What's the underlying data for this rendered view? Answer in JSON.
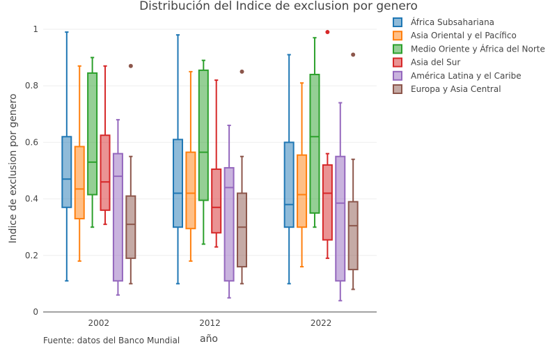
{
  "chart_data": {
    "type": "box",
    "title": "Distribución del Indice de exclusion por genero",
    "xlabel": "año",
    "ylabel": "Indice de exclusion por genero",
    "source_note": "Fuente: datos del Banco Mundial",
    "categories": [
      "2002",
      "2012",
      "2022"
    ],
    "ylim": [
      0,
      1.05
    ],
    "yticks": [
      0,
      0.2,
      0.4,
      0.6,
      0.8,
      1
    ],
    "ytick_labels": [
      "0",
      "0.2",
      "0.4",
      "0.6",
      "0.8",
      "1"
    ],
    "grid": true,
    "legend_position": "top-right",
    "series": [
      {
        "name": "África Subsahariana",
        "color": "#1f77b4",
        "boxes": [
          {
            "min": 0.11,
            "q1": 0.37,
            "median": 0.47,
            "q3": 0.62,
            "max": 0.99,
            "outliers": []
          },
          {
            "min": 0.1,
            "q1": 0.3,
            "median": 0.42,
            "q3": 0.61,
            "max": 0.98,
            "outliers": []
          },
          {
            "min": 0.1,
            "q1": 0.3,
            "median": 0.38,
            "q3": 0.6,
            "max": 0.91,
            "outliers": []
          }
        ]
      },
      {
        "name": "Asia Oriental y el Pacífico",
        "color": "#ff7f0e",
        "boxes": [
          {
            "min": 0.18,
            "q1": 0.33,
            "median": 0.435,
            "q3": 0.585,
            "max": 0.87,
            "outliers": []
          },
          {
            "min": 0.18,
            "q1": 0.295,
            "median": 0.42,
            "q3": 0.565,
            "max": 0.85,
            "outliers": []
          },
          {
            "min": 0.16,
            "q1": 0.3,
            "median": 0.415,
            "q3": 0.555,
            "max": 0.81,
            "outliers": []
          }
        ]
      },
      {
        "name": "Medio Oriente y África del Norte",
        "color": "#2ca02c",
        "boxes": [
          {
            "min": 0.3,
            "q1": 0.415,
            "median": 0.53,
            "q3": 0.845,
            "max": 0.9,
            "outliers": []
          },
          {
            "min": 0.24,
            "q1": 0.395,
            "median": 0.565,
            "q3": 0.855,
            "max": 0.89,
            "outliers": []
          },
          {
            "min": 0.3,
            "q1": 0.35,
            "median": 0.62,
            "q3": 0.84,
            "max": 0.97,
            "outliers": []
          }
        ]
      },
      {
        "name": "Asia del Sur",
        "color": "#d62728",
        "boxes": [
          {
            "min": 0.31,
            "q1": 0.36,
            "median": 0.46,
            "q3": 0.625,
            "max": 0.87,
            "outliers": []
          },
          {
            "min": 0.23,
            "q1": 0.28,
            "median": 0.37,
            "q3": 0.505,
            "max": 0.82,
            "outliers": []
          },
          {
            "min": 0.19,
            "q1": 0.255,
            "median": 0.42,
            "q3": 0.52,
            "max": 0.56,
            "outliers": [
              0.99
            ]
          }
        ]
      },
      {
        "name": "América Latina y el Caribe",
        "color": "#9467bd",
        "boxes": [
          {
            "min": 0.06,
            "q1": 0.11,
            "median": 0.48,
            "q3": 0.56,
            "max": 0.68,
            "outliers": []
          },
          {
            "min": 0.05,
            "q1": 0.11,
            "median": 0.44,
            "q3": 0.51,
            "max": 0.66,
            "outliers": []
          },
          {
            "min": 0.04,
            "q1": 0.11,
            "median": 0.385,
            "q3": 0.55,
            "max": 0.74,
            "outliers": []
          }
        ]
      },
      {
        "name": "Europa y Asia Central",
        "color": "#8c564b",
        "boxes": [
          {
            "min": 0.1,
            "q1": 0.19,
            "median": 0.31,
            "q3": 0.41,
            "max": 0.55,
            "outliers": [
              0.87
            ]
          },
          {
            "min": 0.1,
            "q1": 0.16,
            "median": 0.3,
            "q3": 0.42,
            "max": 0.55,
            "outliers": [
              0.85
            ]
          },
          {
            "min": 0.08,
            "q1": 0.15,
            "median": 0.305,
            "q3": 0.39,
            "max": 0.54,
            "outliers": [
              0.91
            ]
          }
        ]
      }
    ]
  }
}
